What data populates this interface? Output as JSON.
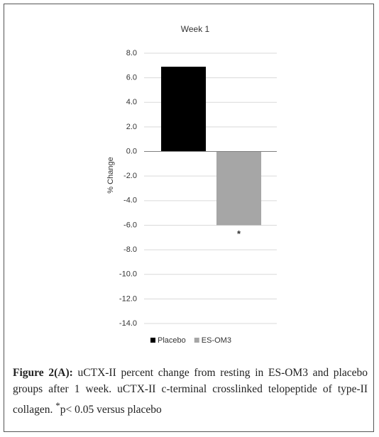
{
  "chart_data": {
    "type": "bar",
    "title": "Week 1",
    "y_label": "% Change",
    "categories": [
      null
    ],
    "series": [
      {
        "name": "Placebo",
        "color": "#000000",
        "values": [
          6.9
        ]
      },
      {
        "name": "ES-OM3",
        "color": "#a6a6a6",
        "values": [
          -6.0
        ]
      }
    ],
    "annotations": [
      "*"
    ],
    "ylim": [
      -14,
      8
    ],
    "yticks": [
      {
        "value": 8,
        "label": "8.0"
      },
      {
        "value": 6,
        "label": "6.0"
      },
      {
        "value": 4,
        "label": "4.0"
      },
      {
        "value": 2,
        "label": "2.0"
      },
      {
        "value": 0,
        "label": "0.0"
      },
      {
        "value": -2,
        "label": "-2.0"
      },
      {
        "value": -4,
        "label": "-4.0"
      },
      {
        "value": -6,
        "label": "-6.0"
      },
      {
        "value": -8,
        "label": "-8.0"
      },
      {
        "value": -10,
        "label": "-10.0"
      },
      {
        "value": -12,
        "label": "-12.0"
      },
      {
        "value": -14,
        "label": "-14.0"
      }
    ],
    "grid": true,
    "legend": "bottom"
  },
  "caption": {
    "label": "Figure 2(A):",
    "text": " uCTX-II percent change from resting in ES-OM3 and placebo groups after 1 week. uCTX-II c-terminal crosslinked telopeptide of type-II collagen. ",
    "sup": "*",
    "tail": "p< 0.05 versus placebo"
  }
}
